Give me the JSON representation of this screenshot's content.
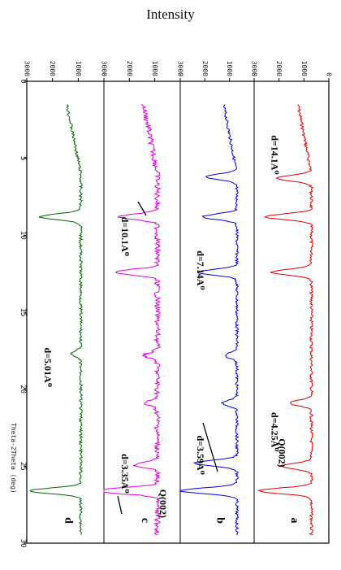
{
  "chart_data": {
    "type": "line",
    "title": "",
    "header_label": "Intensity",
    "xlabel": "Theta-2Theta (deg)",
    "xlim": [
      0,
      30
    ],
    "x_ticks": [
      "0",
      "5",
      "10",
      "15",
      "20",
      "25",
      "30"
    ],
    "ylim": [
      0,
      3000
    ],
    "y_ticks": [
      "0",
      "1000",
      "2000",
      "3000"
    ],
    "orientation": "rotated-90-clockwise",
    "grid": false,
    "panels": [
      {
        "id": "a",
        "color": "#e00000",
        "baseline": 700,
        "noise": 60,
        "peaks": [
          {
            "x": 6.3,
            "h": 1400
          },
          {
            "x": 8.8,
            "h": 1900
          },
          {
            "x": 12.4,
            "h": 1600
          },
          {
            "x": 20.9,
            "h": 900
          },
          {
            "x": 25.0,
            "h": 1200
          },
          {
            "x": 26.6,
            "h": 2100
          }
        ],
        "annotations": [
          {
            "text": "d=14.1A⁰",
            "x": 3.5,
            "y": 2300
          },
          {
            "text": "d=4.25A⁰",
            "x": 21.5,
            "y": 2300
          },
          {
            "text": "Q(002)",
            "x": 23.2,
            "y": 2000
          }
        ]
      },
      {
        "id": "b",
        "color": "#0000e0",
        "baseline": 700,
        "noise": 55,
        "peaks": [
          {
            "x": 6.2,
            "h": 1300
          },
          {
            "x": 8.8,
            "h": 1400
          },
          {
            "x": 12.4,
            "h": 1600
          },
          {
            "x": 17.8,
            "h": 500
          },
          {
            "x": 20.9,
            "h": 600
          },
          {
            "x": 24.8,
            "h": 1700
          },
          {
            "x": 26.6,
            "h": 2300
          }
        ],
        "annotations": [
          {
            "text": "d=7.14A⁰",
            "x": 11.0,
            "y": 2300
          },
          {
            "text": "d=3.59A⁰",
            "x": 23.0,
            "y": 2300
          }
        ]
      },
      {
        "id": "c",
        "color": "#e000e0",
        "baseline": 900,
        "noise": 110,
        "peaks": [
          {
            "x": 8.8,
            "h": 1500
          },
          {
            "x": 12.4,
            "h": 1700
          },
          {
            "x": 17.8,
            "h": 500
          },
          {
            "x": 20.9,
            "h": 500
          },
          {
            "x": 24.9,
            "h": 900
          },
          {
            "x": 26.6,
            "h": 2600
          }
        ],
        "annotations": [
          {
            "text": "d=10.1A⁰",
            "x": 8.8,
            "y": 2300
          },
          {
            "text": "d=3.35A⁰",
            "x": 24.2,
            "y": 2300
          },
          {
            "text": "Q(002)",
            "x": 26.5,
            "y": 800
          }
        ]
      },
      {
        "id": "d",
        "color": "#006600",
        "baseline": 900,
        "noise": 55,
        "peaks": [
          {
            "x": 8.8,
            "h": 1600
          },
          {
            "x": 17.7,
            "h": 400
          },
          {
            "x": 26.6,
            "h": 2000
          }
        ],
        "annotations": [
          {
            "text": "d=5.01A⁰",
            "x": 17.3,
            "y": 2300
          }
        ]
      }
    ]
  }
}
